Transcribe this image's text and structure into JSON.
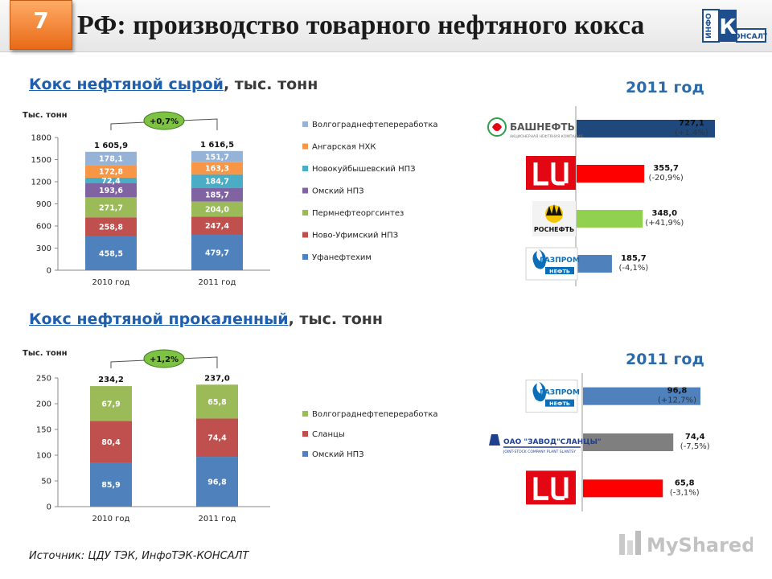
{
  "header": {
    "slide_number": "7",
    "title": "РФ: производство товарного нефтяного кокса",
    "logo_text": "ИнфоТЭК-КОНСАЛТ"
  },
  "section_raw": {
    "title_link": "Кокс нефтяной сырой",
    "title_rest": ", тыс. тонн"
  },
  "section_calcined": {
    "title_link": "Кокс нефтяной прокаленный",
    "title_rest": ", тыс. тонн"
  },
  "year_labels": {
    "raw": "2011 год",
    "calcined": "2011 год"
  },
  "source": "Источник: ЦДУ ТЭК, ИнфоТЭК-КОНСАЛТ",
  "watermark": "MyShared",
  "colors": {
    "ufa": "#4f81bd",
    "novoufa": "#c0504d",
    "perm": "#9bbb59",
    "omsk": "#8064a2",
    "novokuyb": "#4bacc6",
    "angarsk": "#f79646",
    "volgograd": "#95b3d7",
    "slantsy": "#c0504d",
    "badge": "#7dc242",
    "navy": "#1f497d",
    "red": "#ff0000",
    "green": "#92d050",
    "blue": "#4f81bd",
    "gray": "#7f7f7f"
  },
  "chart_data": [
    {
      "type": "bar",
      "stacked": true,
      "ylabel": "Тыс. тонн",
      "ylim": [
        0,
        1800
      ],
      "yticks": [
        "0",
        "300",
        "600",
        "900",
        "1200",
        "1500",
        "1800"
      ],
      "categories": [
        "2010 год",
        "2011 год"
      ],
      "totals": [
        "1 605,9",
        "1 616,5"
      ],
      "change_badge": "+0,7%",
      "series": [
        {
          "name": "Уфанефтехим",
          "color": "#4f81bd",
          "values": [
            458.5,
            479.7
          ],
          "labels": [
            "458,5",
            "479,7"
          ]
        },
        {
          "name": "Ново-Уфимский НПЗ",
          "color": "#c0504d",
          "values": [
            258.8,
            247.4
          ],
          "labels": [
            "258,8",
            "247,4"
          ]
        },
        {
          "name": "Пермнефтеоргсинтез",
          "color": "#9bbb59",
          "values": [
            271.7,
            204.0
          ],
          "labels": [
            "271,7",
            "204,0"
          ]
        },
        {
          "name": "Омский НПЗ",
          "color": "#8064a2",
          "values": [
            193.6,
            185.7
          ],
          "labels": [
            "193,6",
            "185,7"
          ]
        },
        {
          "name": "Новокуйбышевский НПЗ",
          "color": "#4bacc6",
          "values": [
            72.4,
            184.7
          ],
          "labels": [
            "72,4",
            "184,7"
          ]
        },
        {
          "name": "Ангарская НХК",
          "color": "#f79646",
          "values": [
            172.8,
            163.3
          ],
          "labels": [
            "172,8",
            "163,3"
          ]
        },
        {
          "name": "Волгограднефтепереработка",
          "color": "#95b3d7",
          "values": [
            178.1,
            151.7
          ],
          "labels": [
            "178,1",
            "151,7"
          ]
        }
      ]
    },
    {
      "type": "bar",
      "orientation": "horizontal",
      "title": "2011 год",
      "companies": [
        "Башнефть",
        "Лукойл",
        "Роснефть",
        "Газпром нефть"
      ],
      "values": [
        727.1,
        355.7,
        348.0,
        185.7
      ],
      "value_labels": [
        "727,1",
        "355,7",
        "348,0",
        "185,7"
      ],
      "change_labels": [
        "(+1,4%)",
        "(-20,9%)",
        "(+41,9%)",
        "(-4,1%)"
      ],
      "colors": [
        "#1f497d",
        "#ff0000",
        "#92d050",
        "#4f81bd"
      ]
    },
    {
      "type": "bar",
      "stacked": true,
      "ylabel": "Тыс. тонн",
      "ylim": [
        0,
        250
      ],
      "yticks": [
        "0",
        "50",
        "100",
        "150",
        "200",
        "250"
      ],
      "categories": [
        "2010 год",
        "2011 год"
      ],
      "totals": [
        "234,2",
        "237,0"
      ],
      "change_badge": "+1,2%",
      "series": [
        {
          "name": "Омский НПЗ",
          "color": "#4f81bd",
          "values": [
            85.9,
            96.8
          ],
          "labels": [
            "85,9",
            "96,8"
          ]
        },
        {
          "name": "Сланцы",
          "color": "#c0504d",
          "values": [
            80.4,
            74.4
          ],
          "labels": [
            "80,4",
            "74,4"
          ]
        },
        {
          "name": "Волгограднефтепереработка",
          "color": "#9bbb59",
          "values": [
            67.9,
            65.8
          ],
          "labels": [
            "67,9",
            "65,8"
          ]
        }
      ]
    },
    {
      "type": "bar",
      "orientation": "horizontal",
      "title": "2011 год",
      "companies": [
        "Газпром нефть",
        "ОАО \"Завод\"Сланцы\"",
        "Лукойл"
      ],
      "values": [
        96.8,
        74.4,
        65.8
      ],
      "value_labels": [
        "96,8",
        "74,4",
        "65,8"
      ],
      "change_labels": [
        "(+12,7%)",
        "(-7,5%)",
        "(-3,1%)"
      ],
      "colors": [
        "#4f81bd",
        "#7f7f7f",
        "#ff0000"
      ]
    }
  ],
  "logos": {
    "bashneft_text": "БАШНЕФТЬ",
    "bashneft_sub": "АКЦИОНЕРНАЯ НЕФТЯНАЯ КОМПАНИЯ",
    "rosneft_text": "РОСНЕФТЬ",
    "gazprom_text": "ГАЗПРОМ",
    "gazprom_sub": "НЕФТЬ",
    "slantsy_text": "ОАО \"ЗАВОД\"СЛАНЦЫ\"",
    "slantsy_sub": "JOINT-STOCK COMPANY PLANT SLANTSY"
  }
}
